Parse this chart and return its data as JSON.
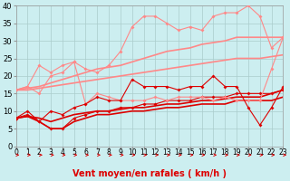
{
  "background_color": "#cceef0",
  "grid_color": "#aacccc",
  "xlabel": "Vent moyen/en rafales ( km/h )",
  "x_ticks": [
    0,
    1,
    2,
    3,
    4,
    5,
    6,
    7,
    8,
    9,
    10,
    11,
    12,
    13,
    14,
    15,
    16,
    17,
    18,
    19,
    20,
    21,
    22,
    23
  ],
  "ylim": [
    0,
    40
  ],
  "yticks": [
    0,
    5,
    10,
    15,
    20,
    25,
    30,
    35,
    40
  ],
  "xlim": [
    0,
    23
  ],
  "lines": [
    {
      "x": [
        0,
        1,
        2,
        3,
        4,
        5,
        6,
        7,
        8,
        9,
        10,
        11,
        12,
        13,
        14,
        15,
        16,
        17,
        18,
        19,
        20,
        21,
        22,
        23
      ],
      "y": [
        8,
        10,
        7,
        10,
        9,
        11,
        12,
        14,
        13,
        13,
        19,
        17,
        17,
        17,
        16,
        17,
        17,
        20,
        17,
        17,
        11,
        6,
        11,
        17
      ],
      "color": "#dd0000",
      "lw": 0.8,
      "marker": "D",
      "ms": 2.0,
      "zorder": 5
    },
    {
      "x": [
        0,
        1,
        2,
        3,
        4,
        5,
        6,
        7,
        8,
        9,
        10,
        11,
        12,
        13,
        14,
        15,
        16,
        17,
        18,
        19,
        20,
        21,
        22,
        23
      ],
      "y": [
        8,
        8.5,
        7,
        5,
        5,
        7,
        8,
        9,
        9,
        9.5,
        10,
        10,
        10.5,
        11,
        11,
        11.5,
        12,
        12,
        12,
        13,
        13,
        13,
        13,
        14
      ],
      "color": "#dd0000",
      "lw": 1.2,
      "marker": null,
      "ms": 0,
      "zorder": 3
    },
    {
      "x": [
        0,
        1,
        2,
        3,
        4,
        5,
        6,
        7,
        8,
        9,
        10,
        11,
        12,
        13,
        14,
        15,
        16,
        17,
        18,
        19,
        20,
        21,
        22,
        23
      ],
      "y": [
        8,
        8.5,
        8,
        7,
        8,
        9,
        9.5,
        10,
        10,
        10.5,
        11,
        11,
        11.5,
        12,
        12,
        12.5,
        13,
        13,
        13.5,
        14,
        14,
        14,
        15,
        16
      ],
      "color": "#dd0000",
      "lw": 1.2,
      "marker": null,
      "ms": 0,
      "zorder": 3
    },
    {
      "x": [
        0,
        1,
        2,
        3,
        4,
        5,
        6,
        7,
        8,
        9,
        10,
        11,
        12,
        13,
        14,
        15,
        16,
        17,
        18,
        19,
        20,
        21,
        22,
        23
      ],
      "y": [
        8,
        9,
        7,
        5,
        5,
        8,
        9,
        10,
        10,
        11,
        11,
        12,
        12,
        13,
        13,
        13,
        14,
        14,
        14,
        15,
        15,
        15,
        15,
        16
      ],
      "color": "#dd0000",
      "lw": 0.8,
      "marker": "D",
      "ms": 2.0,
      "zorder": 4
    },
    {
      "x": [
        0,
        1,
        2,
        3,
        4,
        5,
        6,
        7,
        8,
        9,
        10,
        11,
        12,
        13,
        14,
        15,
        16,
        17,
        18,
        19,
        20,
        21,
        22,
        23
      ],
      "y": [
        16,
        17,
        23,
        21,
        23,
        24,
        22,
        21,
        23,
        27,
        34,
        37,
        37,
        35,
        33,
        34,
        33,
        37,
        38,
        38,
        40,
        37,
        28,
        31
      ],
      "color": "#ff8888",
      "lw": 0.8,
      "marker": "D",
      "ms": 2.0,
      "zorder": 4
    },
    {
      "x": [
        0,
        1,
        2,
        3,
        4,
        5,
        6,
        7,
        8,
        9,
        10,
        11,
        12,
        13,
        14,
        15,
        16,
        17,
        18,
        19,
        20,
        21,
        22,
        23
      ],
      "y": [
        16,
        17,
        15,
        20,
        21,
        24,
        12,
        15,
        14,
        13,
        13,
        13,
        14,
        13,
        14,
        14,
        14,
        13,
        14,
        13,
        13,
        13,
        22,
        31
      ],
      "color": "#ff8888",
      "lw": 0.8,
      "marker": "D",
      "ms": 2.0,
      "zorder": 4
    },
    {
      "x": [
        0,
        1,
        2,
        3,
        4,
        5,
        6,
        7,
        8,
        9,
        10,
        11,
        12,
        13,
        14,
        15,
        16,
        17,
        18,
        19,
        20,
        21,
        22,
        23
      ],
      "y": [
        16,
        16.5,
        17,
        18,
        19,
        20,
        21,
        22,
        22.5,
        23,
        24,
        25,
        26,
        27,
        27.5,
        28,
        29,
        29.5,
        30,
        31,
        31,
        31,
        31,
        31
      ],
      "color": "#ff8888",
      "lw": 1.2,
      "marker": null,
      "ms": 0,
      "zorder": 2
    },
    {
      "x": [
        0,
        1,
        2,
        3,
        4,
        5,
        6,
        7,
        8,
        9,
        10,
        11,
        12,
        13,
        14,
        15,
        16,
        17,
        18,
        19,
        20,
        21,
        22,
        23
      ],
      "y": [
        16,
        16,
        16.5,
        17,
        17.5,
        18,
        18.5,
        19,
        19.5,
        20,
        20.5,
        21,
        21.5,
        22,
        22.5,
        23,
        23.5,
        24,
        24.5,
        25,
        25,
        25,
        25.5,
        26
      ],
      "color": "#ff8888",
      "lw": 1.2,
      "marker": null,
      "ms": 0,
      "zorder": 2
    }
  ],
  "arrow_color": "#dd0000",
  "xlabel_color": "#dd0000",
  "xlabel_fontsize": 7,
  "tick_fontsize": 5.5,
  "ytick_fontsize": 6
}
